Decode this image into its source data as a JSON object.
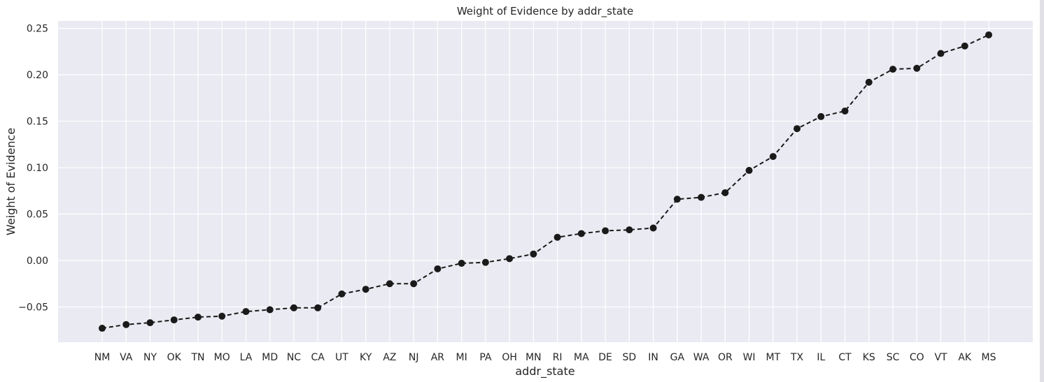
{
  "chart_data": {
    "type": "line",
    "title": "Weight of Evidence by addr_state",
    "xlabel": "addr_state",
    "ylabel": "Weight of Evidence",
    "categories": [
      "NM",
      "VA",
      "NY",
      "OK",
      "TN",
      "MO",
      "LA",
      "MD",
      "NC",
      "CA",
      "UT",
      "KY",
      "AZ",
      "NJ",
      "AR",
      "MI",
      "PA",
      "OH",
      "MN",
      "RI",
      "MA",
      "DE",
      "SD",
      "IN",
      "GA",
      "WA",
      "OR",
      "WI",
      "MT",
      "TX",
      "IL",
      "CT",
      "KS",
      "SC",
      "CO",
      "VT",
      "AK",
      "MS"
    ],
    "series": [
      {
        "values": [
          -0.073,
          -0.069,
          -0.067,
          -0.064,
          -0.061,
          -0.06,
          -0.055,
          -0.053,
          -0.051,
          -0.051,
          -0.036,
          -0.031,
          -0.025,
          -0.025,
          -0.009,
          -0.003,
          -0.002,
          0.002,
          0.007,
          0.025,
          0.029,
          0.032,
          0.033,
          0.035,
          0.066,
          0.068,
          0.073,
          0.097,
          0.112,
          0.142,
          0.155,
          0.161,
          0.192,
          0.206,
          0.207,
          0.223,
          0.231,
          0.243
        ],
        "color": "#1a1a1a",
        "linestyle": "dashed",
        "marker": "circle"
      }
    ],
    "yticks": [
      -0.05,
      0.0,
      0.05,
      0.1,
      0.15,
      0.2,
      0.25
    ],
    "ytick_labels": [
      "−0.05",
      "0.00",
      "0.05",
      "0.10",
      "0.15",
      "0.20",
      "0.25"
    ],
    "ylim": [
      -0.088,
      0.258
    ],
    "grid": true,
    "background_color": "#eaeaf2"
  }
}
